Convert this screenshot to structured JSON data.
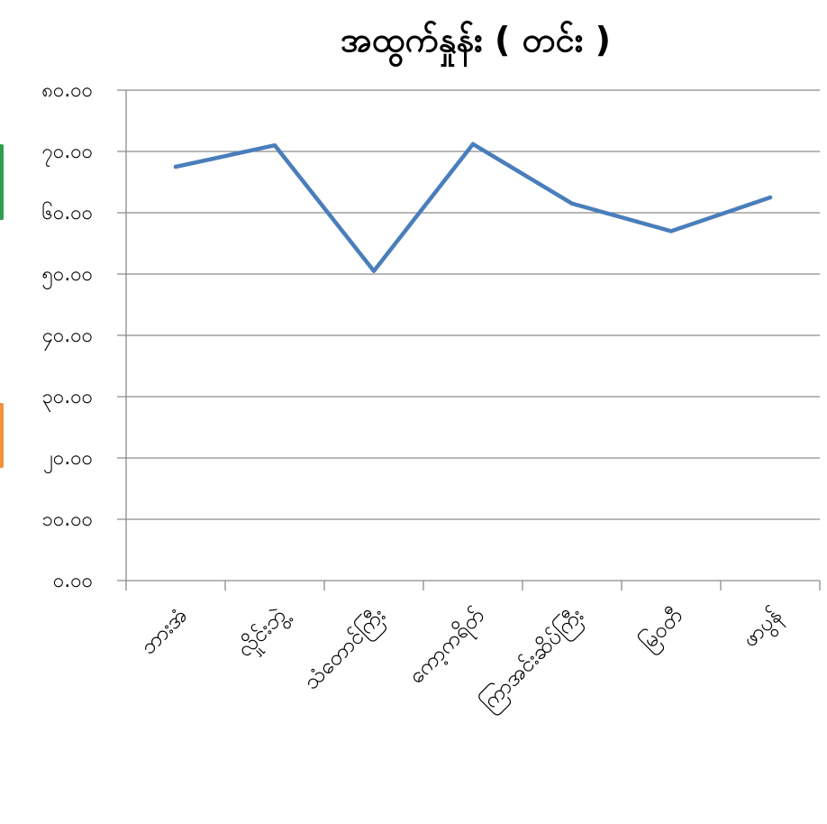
{
  "chart_data": {
    "type": "line",
    "title": "အထွက်နှုန်း ( တင်း )",
    "xlabel": "",
    "ylabel": "",
    "ylim": [
      0,
      80
    ],
    "y_ticks": [
      0,
      10,
      20,
      30,
      40,
      50,
      60,
      70,
      80
    ],
    "y_tick_labels": [
      "၀.၀၀",
      "၁၀.၀၀",
      "၂၀.၀၀",
      "၃၀.၀၀",
      "၄၀.၀၀",
      "၅၀.၀၀",
      "၆၀.၀၀",
      "၇၀.၀၀",
      "၈၀.၀၀"
    ],
    "categories": [
      "ဘားအံ",
      "လှိုင်းဘွဲ့",
      "သံတောင်ကြီး",
      "ကော့ကရိတ်",
      "ကြာအင်းဆိပ်ကြီး",
      "မြဝတီ",
      "ဖာပွန်"
    ],
    "series": [
      {
        "values": [
          67.5,
          71.0,
          50.5,
          71.2,
          61.5,
          57.0,
          62.5
        ]
      }
    ],
    "grid": true,
    "legend": "none",
    "colors": {
      "line": "#4a7ebb",
      "grid": "#8c8c8c",
      "edge_mark_top": "#2e9e4f",
      "edge_mark_bottom": "#f0923e"
    }
  }
}
